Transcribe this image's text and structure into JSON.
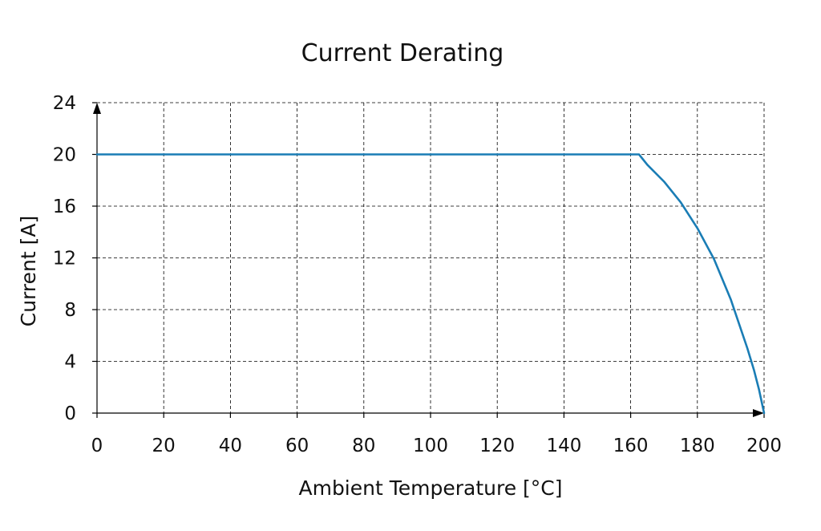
{
  "chart_data": {
    "type": "line",
    "title": "Current Derating",
    "xlabel": "Ambient Temperature [°C]",
    "ylabel": "Current [A]",
    "xlim": [
      0,
      200
    ],
    "ylim": [
      0,
      24
    ],
    "xticks": [
      0,
      20,
      40,
      60,
      80,
      100,
      120,
      140,
      160,
      180,
      200
    ],
    "yticks": [
      0,
      4,
      8,
      12,
      16,
      20,
      24
    ],
    "grid": true,
    "series": [
      {
        "color": "#1a7db5",
        "x": [
          0,
          162.5,
          165,
          170,
          175,
          180,
          185,
          190,
          195,
          197,
          198.5,
          199.5,
          200
        ],
        "y": [
          20,
          20,
          19.2,
          17.9,
          16.3,
          14.3,
          11.9,
          8.8,
          5.0,
          3.3,
          1.8,
          0.6,
          0
        ]
      }
    ]
  }
}
